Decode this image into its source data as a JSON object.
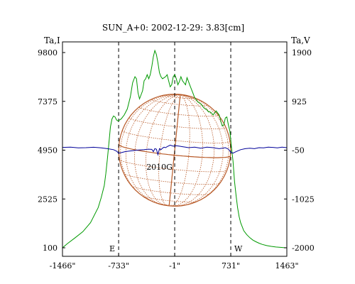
{
  "chart_data": {
    "type": "line",
    "title": "SUN_A+0: 2002-12-29: 3.83[cm]",
    "left_axis": {
      "label": "Ta,I",
      "ylim": [
        100,
        9800
      ],
      "ticks": [
        9800,
        7375,
        4950,
        2525,
        100
      ],
      "tick_labels": [
        "9800",
        "7375",
        "4950",
        "2525",
        "100"
      ]
    },
    "right_axis": {
      "label": "Ta,V",
      "ylim": [
        -2000,
        1900
      ],
      "ticks": [
        1900,
        925,
        -50,
        -1025,
        -2000
      ],
      "tick_labels": [
        "1900",
        "925",
        "-50",
        "-1025",
        "-2000"
      ]
    },
    "x_axis": {
      "xlim": [
        -1466,
        1463
      ],
      "ticks": [
        -1466,
        -733,
        -1,
        731,
        1463
      ],
      "tick_labels": [
        "-1466\"",
        "-733\"",
        "-1\"",
        "731\"",
        "1463\""
      ]
    },
    "vertical_markers": [
      {
        "x": -733,
        "label": "E"
      },
      {
        "x": -1,
        "label": ""
      },
      {
        "x": 731,
        "label": "W"
      }
    ],
    "annotations": [
      {
        "text": "2010G",
        "x": -200,
        "y_left": 3980
      }
    ],
    "solar_disk": {
      "center_x": -1,
      "center_y_left": 4950,
      "radius_arcsec": 731,
      "color": "#b85a28"
    },
    "colors": {
      "intensity": "#009900",
      "polarization": "#000099",
      "grid": "#b85a28"
    },
    "series": [
      {
        "axis": "left",
        "x": [
          -1466,
          -1400,
          -1300,
          -1200,
          -1100,
          -1000,
          -960,
          -920,
          -900,
          -880,
          -860,
          -840,
          -820,
          -800,
          -780,
          -760,
          -740,
          -700,
          -660,
          -620,
          -580,
          -550,
          -520,
          -500,
          -480,
          -460,
          -440,
          -420,
          -400,
          -380,
          -360,
          -340,
          -320,
          -300,
          -280,
          -260,
          -240,
          -220,
          -200,
          -180,
          -160,
          -140,
          -120,
          -100,
          -80,
          -60,
          -40,
          -20,
          0,
          20,
          40,
          60,
          80,
          100,
          120,
          140,
          160,
          180,
          200,
          220,
          240,
          260,
          280,
          300,
          320,
          340,
          360,
          380,
          400,
          420,
          440,
          460,
          480,
          500,
          520,
          540,
          560,
          580,
          600,
          620,
          640,
          660,
          680,
          700,
          720,
          740,
          760,
          780,
          800,
          820,
          840,
          860,
          880,
          900,
          940,
          980,
          1020,
          1060,
          1100,
          1140,
          1200,
          1260,
          1320,
          1380,
          1420,
          1463
        ],
        "y": [
          100,
          310,
          600,
          900,
          1350,
          2100,
          2600,
          3200,
          3800,
          4500,
          5300,
          6100,
          6500,
          6650,
          6600,
          6450,
          6400,
          6500,
          6700,
          7000,
          7600,
          8300,
          8600,
          8500,
          7800,
          7500,
          7700,
          7900,
          8400,
          8500,
          8700,
          8500,
          8700,
          9100,
          9600,
          9900,
          9700,
          9300,
          8800,
          8600,
          8500,
          8550,
          8600,
          8700,
          8400,
          8100,
          8200,
          8600,
          8700,
          8500,
          8200,
          8350,
          8600,
          8400,
          8300,
          8200,
          8550,
          8350,
          8150,
          7950,
          7750,
          7550,
          7450,
          7350,
          7300,
          7250,
          7150,
          7050,
          7000,
          6950,
          6850,
          6850,
          6800,
          6700,
          6800,
          6900,
          6800,
          6700,
          6400,
          6150,
          6200,
          6550,
          6600,
          6200,
          5900,
          5100,
          4400,
          3400,
          2700,
          2100,
          1650,
          1350,
          1150,
          950,
          750,
          600,
          480,
          400,
          330,
          270,
          210,
          170,
          140,
          120,
          110,
          100
        ]
      },
      {
        "axis": "right",
        "x": [
          -1466,
          -1360,
          -1260,
          -1160,
          -1060,
          -960,
          -880,
          -800,
          -760,
          -733,
          -700,
          -650,
          -600,
          -550,
          -500,
          -450,
          -400,
          -350,
          -300,
          -280,
          -260,
          -240,
          -220,
          -200,
          -180,
          -160,
          -140,
          -120,
          -100,
          -60,
          -20,
          20,
          60,
          100,
          140,
          180,
          220,
          260,
          300,
          340,
          380,
          420,
          460,
          500,
          540,
          580,
          620,
          660,
          700,
          731,
          760,
          800,
          860,
          920,
          980,
          1040,
          1100,
          1160,
          1220,
          1280,
          1340,
          1400,
          1463
        ],
        "y": [
          5,
          10,
          -5,
          0,
          8,
          -5,
          -20,
          -40,
          -70,
          -110,
          -100,
          -80,
          -70,
          -60,
          -50,
          -45,
          -40,
          -30,
          -35,
          -80,
          -20,
          -30,
          -140,
          -20,
          -40,
          -10,
          10,
          0,
          20,
          50,
          30,
          40,
          30,
          20,
          10,
          0,
          5,
          10,
          0,
          -10,
          0,
          10,
          5,
          0,
          -10,
          -20,
          -10,
          0,
          -30,
          -90,
          -110,
          -80,
          -40,
          -20,
          -10,
          -20,
          0,
          -5,
          10,
          5,
          -5,
          10,
          0
        ]
      }
    ]
  }
}
